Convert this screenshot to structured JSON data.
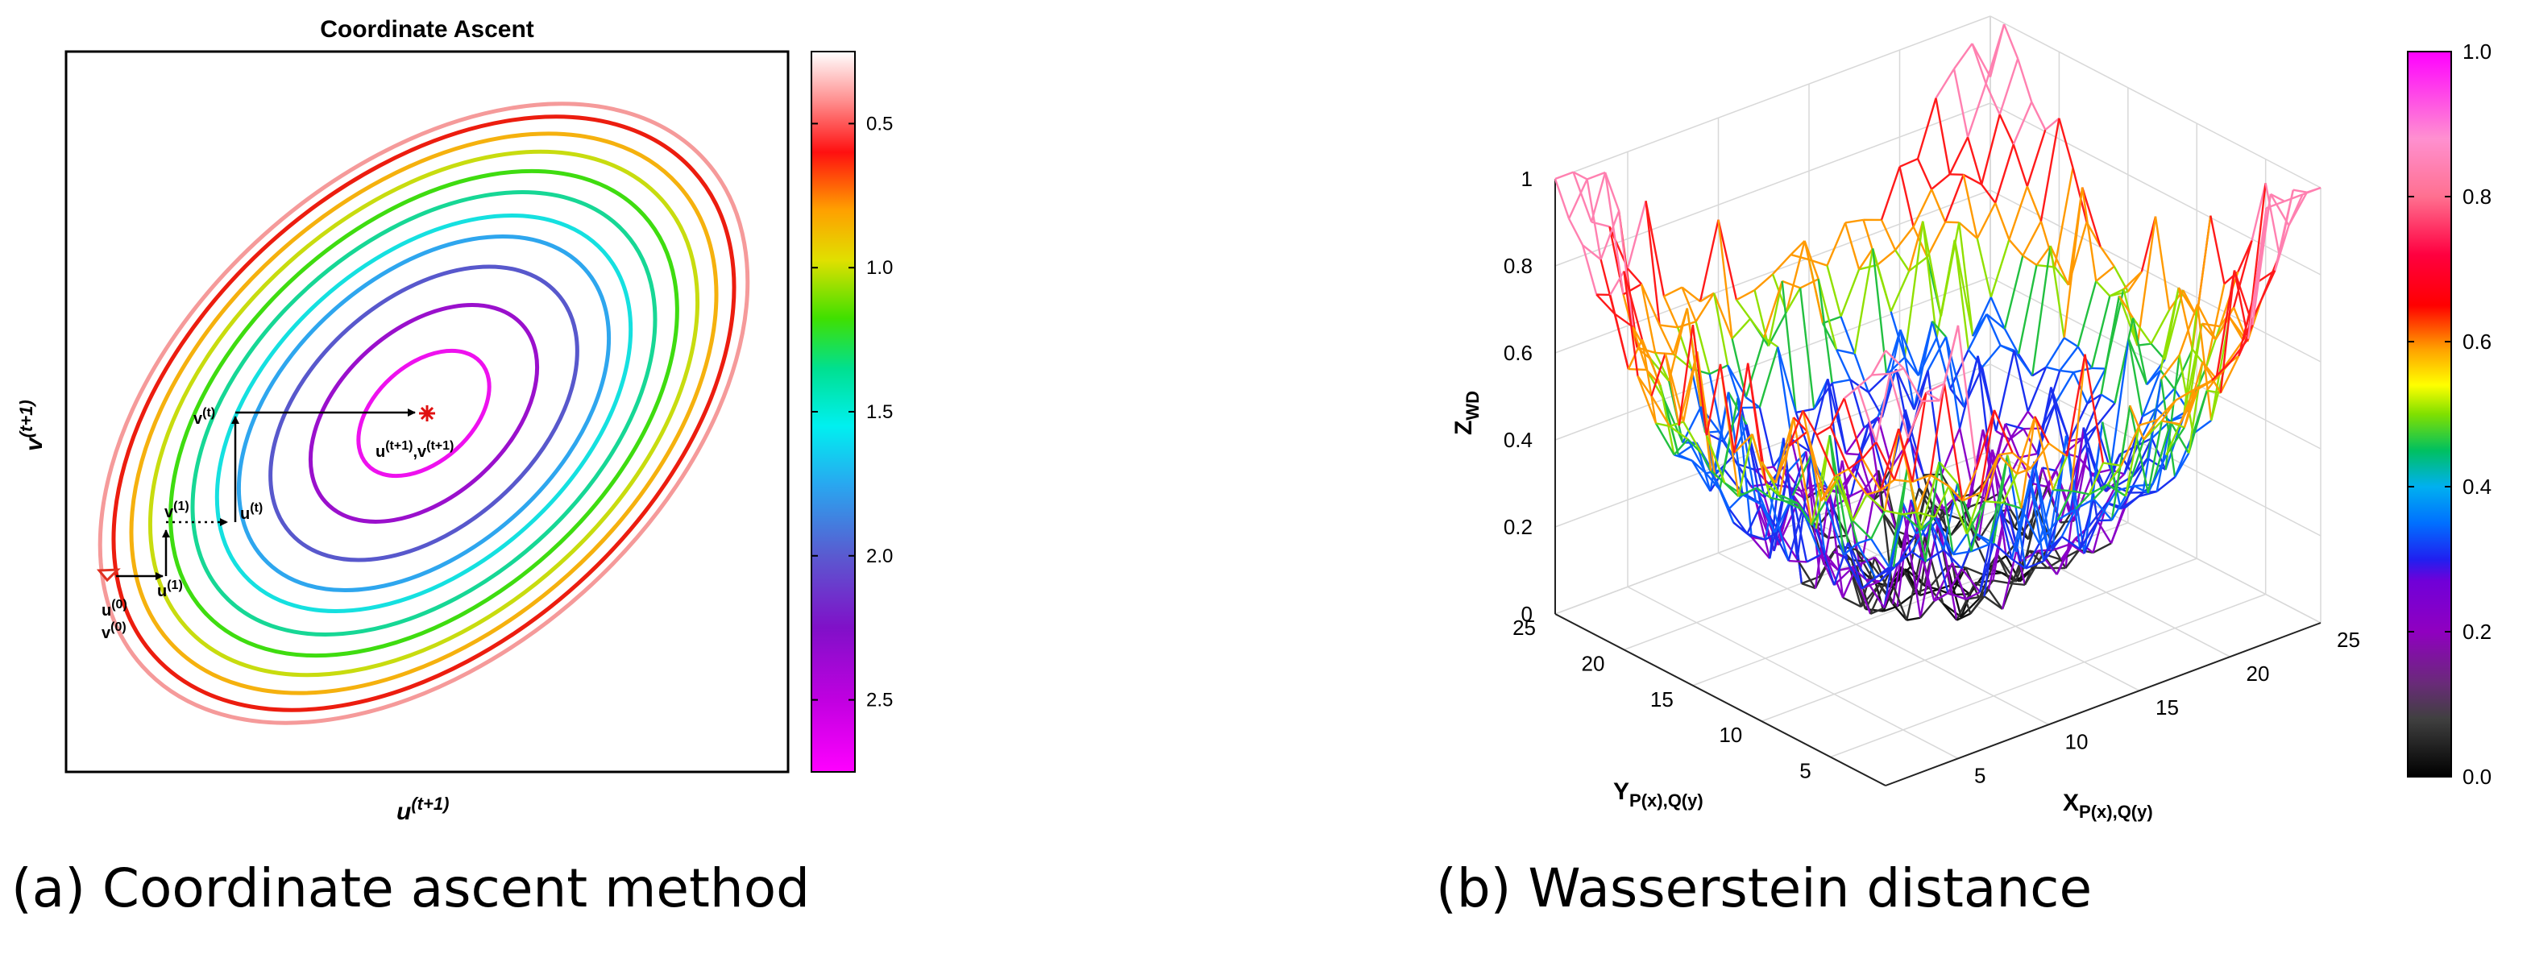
{
  "chart_data": [
    {
      "type": "contour",
      "panel": "a",
      "title": "Coordinate Ascent",
      "xlabel": "u",
      "xlabel_sup": "(t+1)",
      "ylabel": "v",
      "ylabel_sup": "(t+1)",
      "caption": "(a) Coordinate ascent method",
      "colorbar": {
        "range": [
          0.25,
          2.75
        ],
        "reversed": true,
        "ticks": [
          0.5,
          1.0,
          1.5,
          2.0,
          2.5
        ],
        "tick_labels": [
          "0.5",
          "1.0",
          "1.5",
          "2.0",
          "2.5"
        ]
      },
      "contour_levels": [
        2.75,
        2.55,
        2.3,
        2.05,
        1.85,
        1.6,
        1.35,
        1.1,
        0.85,
        0.6,
        0.4
      ],
      "contour_colors": [
        "#ee11ee",
        "#9a10cc",
        "#5858cc",
        "#2ea6ee",
        "#15e0e0",
        "#17d795",
        "#3fdc10",
        "#c8dc0f",
        "#f5b10e",
        "#ec1d0f",
        "#f59a9a"
      ],
      "path_labels": {
        "start_u": "u",
        "start_u_sup": "(0)",
        "start_v": "v",
        "start_v_sup": "(0)",
        "u1": "u",
        "u1_sup": "(1)",
        "v1": "v",
        "v1_sup": "(1)",
        "ut": "u",
        "ut_sup": "(t)",
        "vt": "v",
        "vt_sup": "(t)",
        "final_u": "u",
        "final_u_sup": "(t+1)",
        "comma": ",",
        "final_v": "v",
        "final_v_sup": "(t+1)"
      }
    },
    {
      "type": "surface3d",
      "panel": "b",
      "xlabel": "X",
      "xlabel_sub": "P(x),Q(y)",
      "ylabel": "Y",
      "ylabel_sub": "P(x),Q(y)",
      "zlabel": "Z",
      "zlabel_sub": "WD",
      "caption": "(b) Wasserstein distance",
      "x_range": [
        1,
        25
      ],
      "y_range": [
        1,
        25
      ],
      "z_range": [
        0,
        1
      ],
      "x_ticks": [
        5,
        10,
        15,
        20,
        25
      ],
      "y_ticks": [
        5,
        10,
        15,
        20,
        25
      ],
      "z_ticks": [
        0,
        0.2,
        0.4,
        0.6,
        0.8,
        1
      ],
      "z_tick_labels": [
        "0",
        "0.2",
        "0.4",
        "0.6",
        "0.8",
        "1"
      ],
      "colorbar": {
        "range": [
          0,
          1
        ],
        "ticks": [
          0,
          0.2,
          0.4,
          0.6,
          0.8,
          1.0
        ],
        "tick_labels": [
          "0.0",
          "0.2",
          "0.4",
          "0.6",
          "0.8",
          "1.0"
        ]
      }
    }
  ]
}
